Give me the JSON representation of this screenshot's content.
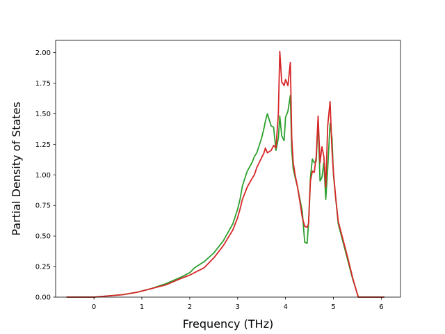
{
  "chart_data": {
    "type": "line",
    "title": "",
    "xlabel": "Frequency (THz)",
    "ylabel": "Partial Density of States",
    "xlim": [
      -0.8,
      6.4
    ],
    "ylim": [
      0.0,
      2.1
    ],
    "xticks": [
      0,
      1,
      2,
      3,
      4,
      5,
      6
    ],
    "xtick_labels": [
      "0",
      "1",
      "2",
      "3",
      "4",
      "5",
      "6"
    ],
    "yticks": [
      0.0,
      0.25,
      0.5,
      0.75,
      1.0,
      1.25,
      1.5,
      1.75,
      2.0
    ],
    "ytick_labels": [
      "0.00",
      "0.25",
      "0.50",
      "0.75",
      "1.00",
      "1.25",
      "1.50",
      "1.75",
      "2.00"
    ],
    "grid": false,
    "legend": "none",
    "series": [
      {
        "color": "#2ca02c",
        "x": [
          -0.56,
          0.0,
          0.3,
          0.6,
          0.9,
          1.2,
          1.5,
          1.8,
          2.0,
          2.1,
          2.3,
          2.5,
          2.7,
          2.9,
          3.0,
          3.05,
          3.1,
          3.2,
          3.3,
          3.35,
          3.4,
          3.45,
          3.5,
          3.55,
          3.58,
          3.62,
          3.7,
          3.75,
          3.8,
          3.85,
          3.88,
          3.92,
          3.97,
          4.0,
          4.05,
          4.1,
          4.13,
          4.16,
          4.2,
          4.25,
          4.3,
          4.35,
          4.4,
          4.45,
          4.48,
          4.52,
          4.56,
          4.6,
          4.64,
          4.68,
          4.72,
          4.76,
          4.8,
          4.84,
          4.88,
          4.93,
          4.97,
          5.0,
          5.05,
          5.1,
          5.2,
          5.3,
          5.4,
          5.48,
          5.52,
          5.6,
          6.05
        ],
        "y": [
          0.0,
          0.0,
          0.01,
          0.02,
          0.04,
          0.07,
          0.11,
          0.16,
          0.2,
          0.24,
          0.29,
          0.36,
          0.46,
          0.6,
          0.72,
          0.8,
          0.91,
          1.03,
          1.1,
          1.15,
          1.18,
          1.24,
          1.3,
          1.38,
          1.44,
          1.5,
          1.4,
          1.39,
          1.2,
          1.3,
          1.48,
          1.32,
          1.28,
          1.47,
          1.52,
          1.65,
          1.2,
          1.05,
          0.98,
          0.9,
          0.8,
          0.7,
          0.45,
          0.44,
          0.6,
          0.98,
          1.13,
          1.1,
          1.11,
          1.45,
          0.95,
          0.98,
          1.1,
          0.8,
          1.05,
          1.42,
          1.3,
          1.0,
          0.8,
          0.6,
          0.45,
          0.3,
          0.15,
          0.05,
          0.0,
          0.0,
          0.0
        ]
      },
      {
        "color": "#d62728",
        "x": [
          -0.56,
          0.0,
          0.3,
          0.6,
          0.9,
          1.2,
          1.5,
          1.8,
          2.0,
          2.1,
          2.3,
          2.5,
          2.7,
          2.9,
          3.0,
          3.05,
          3.1,
          3.2,
          3.3,
          3.35,
          3.4,
          3.45,
          3.5,
          3.55,
          3.58,
          3.62,
          3.7,
          3.75,
          3.8,
          3.85,
          3.88,
          3.92,
          3.97,
          4.0,
          4.05,
          4.1,
          4.13,
          4.16,
          4.2,
          4.25,
          4.3,
          4.35,
          4.4,
          4.45,
          4.48,
          4.52,
          4.56,
          4.6,
          4.64,
          4.68,
          4.72,
          4.76,
          4.8,
          4.84,
          4.88,
          4.93,
          4.97,
          5.0,
          5.05,
          5.1,
          5.2,
          5.3,
          5.4,
          5.48,
          5.52,
          5.6,
          6.05
        ],
        "y": [
          0.0,
          0.0,
          0.01,
          0.02,
          0.04,
          0.07,
          0.1,
          0.15,
          0.18,
          0.2,
          0.24,
          0.32,
          0.42,
          0.55,
          0.65,
          0.72,
          0.8,
          0.9,
          0.97,
          1.0,
          1.06,
          1.1,
          1.14,
          1.18,
          1.22,
          1.18,
          1.2,
          1.24,
          1.22,
          1.5,
          2.01,
          1.76,
          1.73,
          1.78,
          1.73,
          1.92,
          1.3,
          1.1,
          1.0,
          0.9,
          0.78,
          0.65,
          0.58,
          0.57,
          0.6,
          0.95,
          1.03,
          1.02,
          1.15,
          1.48,
          1.1,
          1.23,
          1.15,
          0.9,
          1.4,
          1.6,
          1.2,
          1.02,
          0.8,
          0.62,
          0.47,
          0.32,
          0.16,
          0.05,
          0.0,
          0.0,
          0.0
        ]
      }
    ]
  }
}
